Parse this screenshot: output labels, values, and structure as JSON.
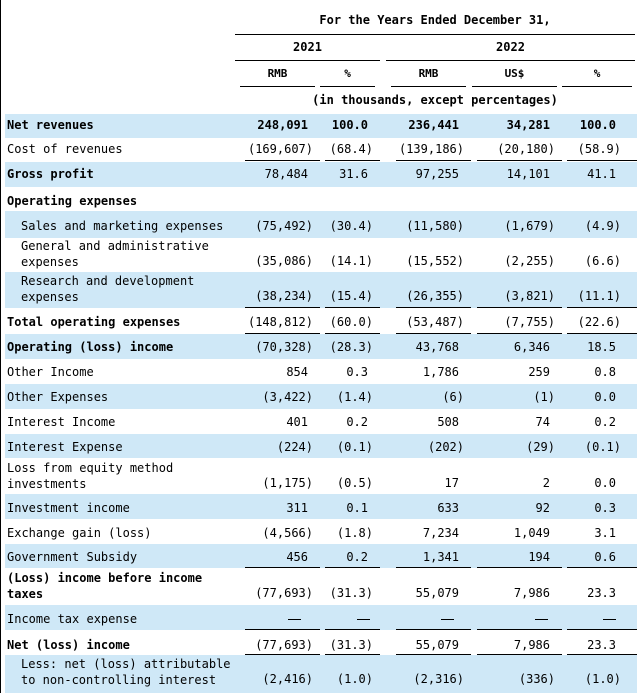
{
  "header": {
    "period_title": "For the Years Ended December 31,",
    "year_2021": "2021",
    "year_2022": "2022",
    "col_rmb_2021": "RMB",
    "col_pct_2021": "%",
    "col_rmb_2022": "RMB",
    "col_usd_2022": "US$",
    "col_pct_2022": "%",
    "units_note": "(in thousands, except percentages)"
  },
  "rows": [
    {
      "label": "Net revenues",
      "v1": "248,091",
      "v2": "100.0",
      "v3": "236,441",
      "v4": "34,281",
      "v5": "100.0"
    },
    {
      "label": "Cost of revenues",
      "v1": "(169,607)",
      "v2": "(68.4)",
      "v3": "(139,186)",
      "v4": "(20,180)",
      "v5": "(58.9)"
    },
    {
      "label": "Gross profit",
      "v1": "78,484",
      "v2": "31.6",
      "v3": "97,255",
      "v4": "14,101",
      "v5": "41.1"
    },
    {
      "label": "Operating expenses"
    },
    {
      "label": "Sales and marketing expenses",
      "v1": "(75,492)",
      "v2": "(30.4)",
      "v3": "(11,580)",
      "v4": "(1,679)",
      "v5": "(4.9)"
    },
    {
      "label": "General and administrative expenses",
      "v1": "(35,086)",
      "v2": "(14.1)",
      "v3": "(15,552)",
      "v4": "(2,255)",
      "v5": "(6.6)"
    },
    {
      "label": "Research and development expenses",
      "v1": "(38,234)",
      "v2": "(15.4)",
      "v3": "(26,355)",
      "v4": "(3,821)",
      "v5": "(11.1)"
    },
    {
      "label": "Total operating expenses",
      "v1": "(148,812)",
      "v2": "(60.0)",
      "v3": "(53,487)",
      "v4": "(7,755)",
      "v5": "(22.6)"
    },
    {
      "label": "Operating (loss) income",
      "v1": "(70,328)",
      "v2": "(28.3)",
      "v3": "43,768",
      "v4": "6,346",
      "v5": "18.5"
    },
    {
      "label": "Other Income",
      "v1": "854",
      "v2": "0.3",
      "v3": "1,786",
      "v4": "259",
      "v5": "0.8"
    },
    {
      "label": "Other Expenses",
      "v1": "(3,422)",
      "v2": "(1.4)",
      "v3": "(6)",
      "v4": "(1)",
      "v5": "0.0"
    },
    {
      "label": "Interest Income",
      "v1": "401",
      "v2": "0.2",
      "v3": "508",
      "v4": "74",
      "v5": "0.2"
    },
    {
      "label": "Interest Expense",
      "v1": "(224)",
      "v2": "(0.1)",
      "v3": "(202)",
      "v4": "(29)",
      "v5": "(0.1)"
    },
    {
      "label": "Loss from equity method investments",
      "v1": "(1,175)",
      "v2": "(0.5)",
      "v3": "17",
      "v4": "2",
      "v5": "0.0"
    },
    {
      "label": "Investment income",
      "v1": "311",
      "v2": "0.1",
      "v3": "633",
      "v4": "92",
      "v5": "0.3"
    },
    {
      "label": "Exchange gain (loss)",
      "v1": "(4,566)",
      "v2": "(1.8)",
      "v3": "7,234",
      "v4": "1,049",
      "v5": "3.1"
    },
    {
      "label": "Government Subsidy",
      "v1": "456",
      "v2": "0.2",
      "v3": "1,341",
      "v4": "194",
      "v5": "0.6"
    },
    {
      "label": "(Loss) income before income taxes",
      "v1": "(77,693)",
      "v2": "(31.3)",
      "v3": "55,079",
      "v4": "7,986",
      "v5": "23.3"
    },
    {
      "label": "Income tax expense"
    },
    {
      "label": "Net (loss) income",
      "v1": "(77,693)",
      "v2": "(31.3)",
      "v3": "55,079",
      "v4": "7,986",
      "v5": "23.3"
    },
    {
      "label": "Less: net (loss) attributable to non-controlling interest",
      "v1": "(2,416)",
      "v2": "(1.0)",
      "v3": "(2,316)",
      "v4": "(336)",
      "v5": "(1.0)"
    }
  ]
}
